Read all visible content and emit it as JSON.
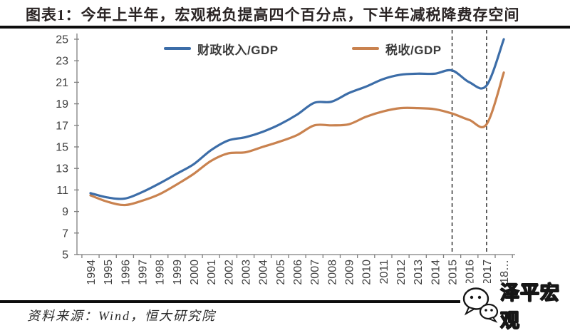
{
  "title": "图表1：今年上半年，宏观税负提高四个百分点，下半年减税降费存空间",
  "source_note": "资料来源：Wind，恒大研究院",
  "watermark": {
    "brand": "泽平宏观",
    "icon": "wechat-bubbles-icon"
  },
  "chart_data": {
    "type": "line",
    "x_labels": [
      "1994",
      "1995",
      "1996",
      "1997",
      "1998",
      "1999",
      "2000",
      "2001",
      "2002",
      "2003",
      "2004",
      "2005",
      "2006",
      "2007",
      "2008",
      "2009",
      "2010",
      "2011",
      "2012",
      "2013",
      "2014",
      "2015",
      "2016",
      "2017",
      "2018…"
    ],
    "years": [
      1994,
      1995,
      1996,
      1997,
      1998,
      1999,
      2000,
      2001,
      2002,
      2003,
      2004,
      2005,
      2006,
      2007,
      2008,
      2009,
      2010,
      2011,
      2012,
      2013,
      2014,
      2015,
      2016,
      2017,
      2018
    ],
    "series": [
      {
        "name": "财政收入/GDP",
        "color": "#3c6da8",
        "values": [
          10.7,
          10.3,
          10.2,
          10.8,
          11.6,
          12.5,
          13.4,
          14.7,
          15.6,
          15.9,
          16.4,
          17.1,
          18.0,
          19.1,
          19.2,
          20.0,
          20.6,
          21.3,
          21.7,
          21.8,
          21.8,
          22.1,
          21.0,
          20.7,
          25.0
        ]
      },
      {
        "name": "税收/GDP",
        "color": "#c9824f",
        "values": [
          10.5,
          9.9,
          9.6,
          10.0,
          10.6,
          11.5,
          12.5,
          13.7,
          14.4,
          14.5,
          15.0,
          15.5,
          16.1,
          17.0,
          17.0,
          17.1,
          17.8,
          18.3,
          18.6,
          18.6,
          18.5,
          18.1,
          17.5,
          17.1,
          21.9
        ]
      }
    ],
    "ylim": [
      5,
      25
    ],
    "yticks": [
      5,
      7,
      9,
      11,
      13,
      15,
      17,
      19,
      21,
      23,
      25
    ],
    "xlabel": "",
    "ylabel": "",
    "grid": false,
    "legend_position": "top",
    "dashed_vlines_years": [
      2015,
      2017
    ],
    "axis_color": "#7f7f7f",
    "tick_label_color": "#3f3f3f",
    "dashed_line_color": "#3f3f3f"
  }
}
